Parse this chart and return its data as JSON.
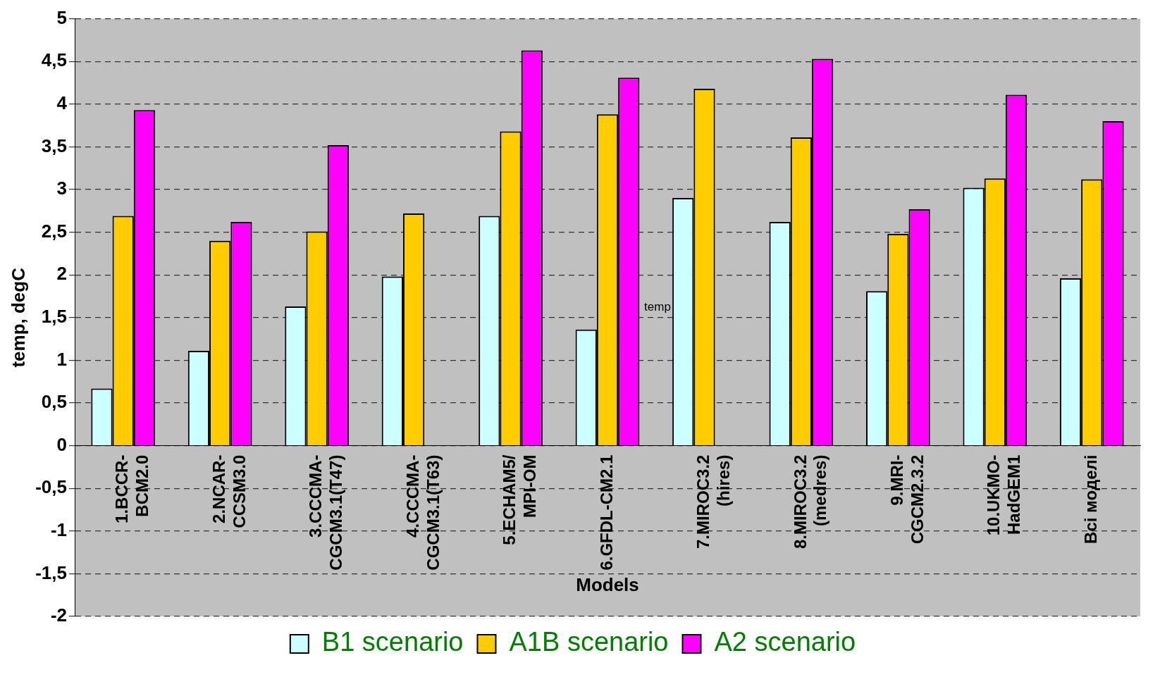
{
  "chart_data": {
    "type": "bar",
    "xlabel": "Models",
    "ylabel": "temp, degC",
    "categories": [
      "1.BCCR-\nBCM2.0",
      "2.NCAR-\nCCSM3.0",
      "3.CCCMA-\nCGCM3.1(T47)",
      "4.CCCMA-\nCGCM3.1(T63)",
      "5.ECHAM5/\nMPI-OM",
      "6.GFDL-CM2.1",
      "7.MIROC3.2\n(hires)",
      "8.MIROC3.2\n(medres)",
      "9.MRI-\nCGCM2.3.2",
      "10.UKMO-\nHadGEM1",
      "Всі моделі"
    ],
    "series": [
      {
        "name": "B1 scenario",
        "color": "#ccffff",
        "values": [
          0.67,
          1.11,
          1.63,
          1.98,
          2.69,
          1.36,
          2.9,
          2.62,
          1.81,
          3.02,
          1.96
        ]
      },
      {
        "name": "A1B scenario",
        "color": "#ffcc00",
        "values": [
          2.69,
          2.4,
          2.51,
          2.72,
          3.68,
          3.88,
          4.18,
          3.61,
          2.48,
          3.13,
          3.12
        ]
      },
      {
        "name": "A2 scenario",
        "color": "#ff00ff",
        "values": [
          3.93,
          2.62,
          3.52,
          null,
          4.63,
          4.31,
          null,
          4.53,
          2.77,
          4.11,
          3.8
        ]
      }
    ],
    "ylim": [
      -2,
      5
    ],
    "yticks": [
      -2,
      {
        "value": -1.5,
        "label": "-1,5"
      },
      -1,
      {
        "value": -0.5,
        "label": "-0,5"
      },
      0,
      {
        "value": 0.5,
        "label": "0,5"
      },
      1,
      {
        "value": 1.5,
        "label": "1,5"
      },
      2,
      {
        "value": 2.5,
        "label": "2,5"
      },
      3,
      {
        "value": 3.5,
        "label": "3,5"
      },
      4,
      {
        "value": 4.5,
        "label": "4,5"
      },
      5
    ],
    "grid": "y",
    "legend": "bottom",
    "annotations": [
      "temp"
    ]
  }
}
